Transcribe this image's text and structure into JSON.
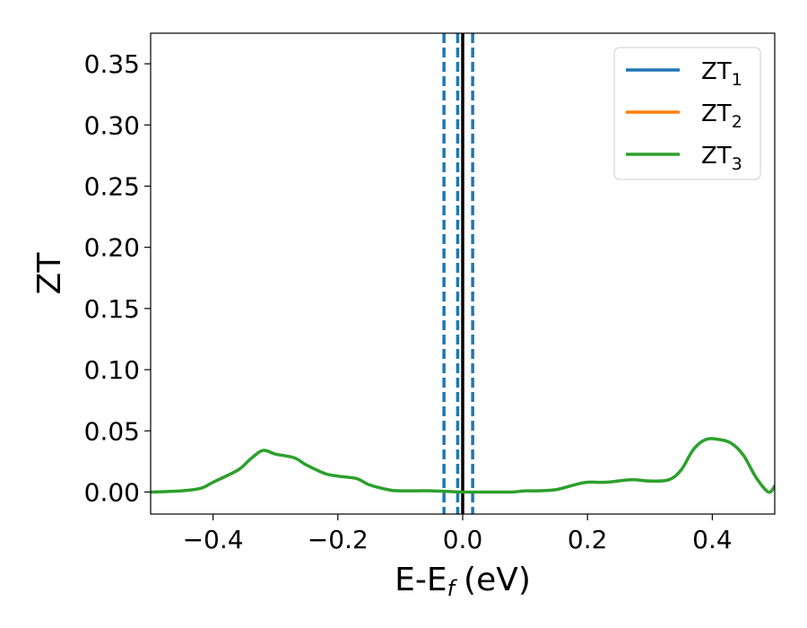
{
  "chart_data": {
    "type": "line",
    "xlabel": "E-E",
    "xlabel_sub": "f",
    "xlabel_unit": "(eV)",
    "ylabel": "ZT",
    "xlim": [
      -0.5,
      0.5
    ],
    "ylim": [
      -0.018,
      0.375
    ],
    "grid": false,
    "legend_position": "top-right",
    "x_ticks": [
      -0.4,
      -0.2,
      0.0,
      0.2,
      0.4
    ],
    "x_tick_labels": [
      "−0.4",
      "−0.2",
      "0.0",
      "0.2",
      "0.4"
    ],
    "y_ticks": [
      0.0,
      0.05,
      0.1,
      0.15,
      0.2,
      0.25,
      0.3,
      0.35
    ],
    "y_tick_labels": [
      "0.00",
      "0.05",
      "0.10",
      "0.15",
      "0.20",
      "0.25",
      "0.30",
      "0.35"
    ],
    "series": [
      {
        "name": "ZT",
        "subscript": "1",
        "color": "#1f77b4",
        "x": [],
        "y": []
      },
      {
        "name": "ZT",
        "subscript": "2",
        "color": "#ff7f0e",
        "x": [],
        "y": []
      },
      {
        "name": "ZT",
        "subscript": "3",
        "color": "#2ca02c",
        "x": [
          -0.5,
          -0.45,
          -0.42,
          -0.4,
          -0.36,
          -0.34,
          -0.32,
          -0.3,
          -0.27,
          -0.25,
          -0.22,
          -0.2,
          -0.17,
          -0.15,
          -0.12,
          -0.1,
          -0.05,
          0.0,
          0.05,
          0.08,
          0.1,
          0.12,
          0.15,
          0.18,
          0.2,
          0.23,
          0.27,
          0.3,
          0.33,
          0.35,
          0.37,
          0.39,
          0.41,
          0.43,
          0.45,
          0.47,
          0.49,
          0.5
        ],
        "y": [
          0.0,
          0.001,
          0.003,
          0.008,
          0.018,
          0.027,
          0.034,
          0.031,
          0.028,
          0.022,
          0.015,
          0.013,
          0.011,
          0.006,
          0.002,
          0.001,
          0.001,
          0.0,
          0.0,
          0.0,
          0.001,
          0.001,
          0.002,
          0.006,
          0.008,
          0.008,
          0.01,
          0.009,
          0.01,
          0.018,
          0.035,
          0.043,
          0.043,
          0.04,
          0.03,
          0.012,
          0.0,
          0.005
        ]
      }
    ],
    "vertical_lines": [
      {
        "x": 0.0,
        "style": "solid",
        "color": "#000000"
      },
      {
        "x": -0.03,
        "style": "dashed",
        "color": "#1f77b4"
      },
      {
        "x": -0.008,
        "style": "dashed",
        "color": "#1f77b4"
      },
      {
        "x": 0.016,
        "style": "dashed",
        "color": "#1f77b4"
      }
    ]
  }
}
